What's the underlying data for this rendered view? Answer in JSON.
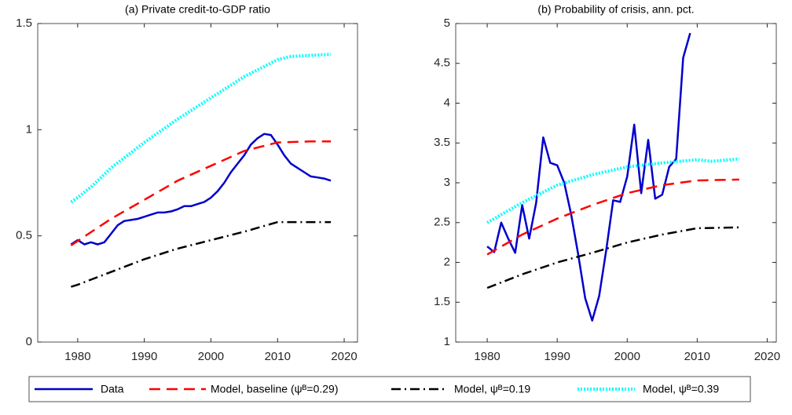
{
  "chart_data": [
    {
      "type": "line",
      "title": "(a) Private credit-to-GDP ratio",
      "xlim": [
        1974,
        2022
      ],
      "xticks": [
        1980,
        1990,
        2000,
        2010,
        2020
      ],
      "ylim": [
        0,
        1.5
      ],
      "yticks": [
        0,
        {
          "value": 0.5,
          "label": "0.5"
        },
        1,
        1.5
      ],
      "series": [
        {
          "name": "Data",
          "color": "#0000cc",
          "linestyle": "-",
          "x": [
            1979,
            1980,
            1981,
            1982,
            1983,
            1984,
            1985,
            1986,
            1987,
            1988,
            1989,
            1990,
            1991,
            1992,
            1993,
            1994,
            1995,
            1996,
            1997,
            1998,
            1999,
            2000,
            2001,
            2002,
            2003,
            2004,
            2005,
            2006,
            2007,
            2008,
            2009,
            2010,
            2011,
            2012,
            2013,
            2014,
            2015,
            2016,
            2017,
            2018
          ],
          "values": [
            0.46,
            0.48,
            0.46,
            0.47,
            0.46,
            0.47,
            0.51,
            0.55,
            0.57,
            0.575,
            0.58,
            0.59,
            0.6,
            0.61,
            0.61,
            0.615,
            0.625,
            0.64,
            0.64,
            0.65,
            0.66,
            0.68,
            0.71,
            0.75,
            0.8,
            0.84,
            0.88,
            0.93,
            0.96,
            0.98,
            0.975,
            0.93,
            0.88,
            0.84,
            0.82,
            0.8,
            0.78,
            0.775,
            0.77,
            0.76
          ]
        },
        {
          "name": "Model, baseline (ψᴮ=0.29)",
          "color": "#ff0000",
          "linestyle": "--",
          "x": [
            1979,
            1985,
            1990,
            1995,
            2000,
            2005,
            2010,
            2015,
            2018
          ],
          "values": [
            0.455,
            0.58,
            0.67,
            0.76,
            0.83,
            0.9,
            0.94,
            0.945,
            0.945
          ]
        },
        {
          "name": "Model, ψᴮ=0.19",
          "color": "#000000",
          "linestyle": "-.",
          "x": [
            1979,
            1980,
            1985,
            1990,
            1995,
            2000,
            2005,
            2010,
            2015,
            2018
          ],
          "values": [
            0.26,
            0.27,
            0.33,
            0.39,
            0.44,
            0.48,
            0.52,
            0.565,
            0.565,
            0.565
          ]
        },
        {
          "name": "Model, ψᴮ=0.39",
          "color": "#00ffff",
          "linestyle": ":",
          "x": [
            1979,
            1980,
            1982,
            1985,
            1990,
            1995,
            2000,
            2005,
            2010,
            2012,
            2015,
            2018
          ],
          "values": [
            0.66,
            0.68,
            0.73,
            0.82,
            0.94,
            1.05,
            1.15,
            1.25,
            1.33,
            1.345,
            1.35,
            1.355
          ]
        }
      ]
    },
    {
      "type": "line",
      "title": "(b) Probability of crisis, ann. pct.",
      "xlim": [
        1975.5,
        2021.3
      ],
      "xticks": [
        1980,
        1990,
        2000,
        2010,
        2020
      ],
      "ylim": [
        1,
        5
      ],
      "yticks": [
        1,
        1.5,
        2,
        2.5,
        3,
        3.5,
        4,
        4.5,
        5
      ],
      "series": [
        {
          "color": "#0000cc",
          "linestyle": "-",
          "x": [
            1980,
            1981,
            1982,
            1983,
            1984,
            1985,
            1986,
            1987,
            1988,
            1989,
            1990,
            1991,
            1992,
            1993,
            1994,
            1995,
            1996,
            1997,
            1998,
            1999,
            2000,
            2001,
            2002,
            2003,
            2004,
            2005,
            2006,
            2007,
            2008,
            2009
          ],
          "values": [
            2.2,
            2.13,
            2.5,
            2.3,
            2.12,
            2.72,
            2.3,
            2.75,
            3.57,
            3.25,
            3.22,
            3.0,
            2.6,
            2.1,
            1.55,
            1.27,
            1.58,
            2.15,
            2.78,
            2.76,
            3.08,
            3.73,
            2.87,
            3.54,
            2.8,
            2.85,
            3.2,
            3.3,
            4.57,
            4.88
          ]
        },
        {
          "color": "#ff0000",
          "linestyle": "--",
          "x": [
            1980,
            1985,
            1990,
            1995,
            2000,
            2005,
            2010,
            2016
          ],
          "values": [
            2.1,
            2.35,
            2.55,
            2.72,
            2.87,
            2.97,
            3.03,
            3.04
          ]
        },
        {
          "color": "#000000",
          "linestyle": "-.",
          "x": [
            1980,
            1985,
            1990,
            1995,
            2000,
            2005,
            2010,
            2016
          ],
          "values": [
            1.68,
            1.85,
            2.0,
            2.12,
            2.25,
            2.35,
            2.43,
            2.44
          ]
        },
        {
          "color": "#00ffff",
          "linestyle": ":",
          "x": [
            1980,
            1985,
            1990,
            1995,
            2000,
            2005,
            2010,
            2012,
            2016
          ],
          "values": [
            2.5,
            2.75,
            2.97,
            3.1,
            3.2,
            3.25,
            3.29,
            3.27,
            3.3
          ]
        }
      ]
    }
  ]
}
